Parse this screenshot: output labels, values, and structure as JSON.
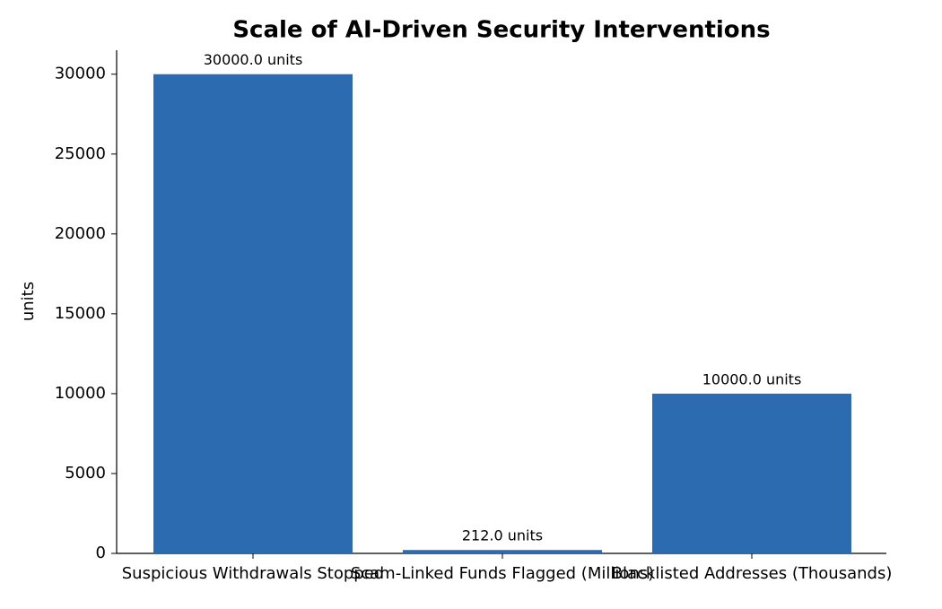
{
  "chart_data": {
    "type": "bar",
    "title": "Scale of AI-Driven Security Interventions",
    "ylabel": "units",
    "categories": [
      "Suspicious Withdrawals Stopped",
      "Scam-Linked Funds Flagged (Millions)",
      "Blacklisted Addresses (Thousands)"
    ],
    "values": [
      30000,
      212,
      10000
    ],
    "value_labels": [
      "30000.0 units",
      "212.0 units",
      "10000.0 units"
    ],
    "color": "#2d6bb0",
    "ylim": [
      0,
      31500
    ],
    "yticks": [
      0,
      5000,
      10000,
      15000,
      20000,
      25000,
      30000
    ],
    "grid": false
  }
}
